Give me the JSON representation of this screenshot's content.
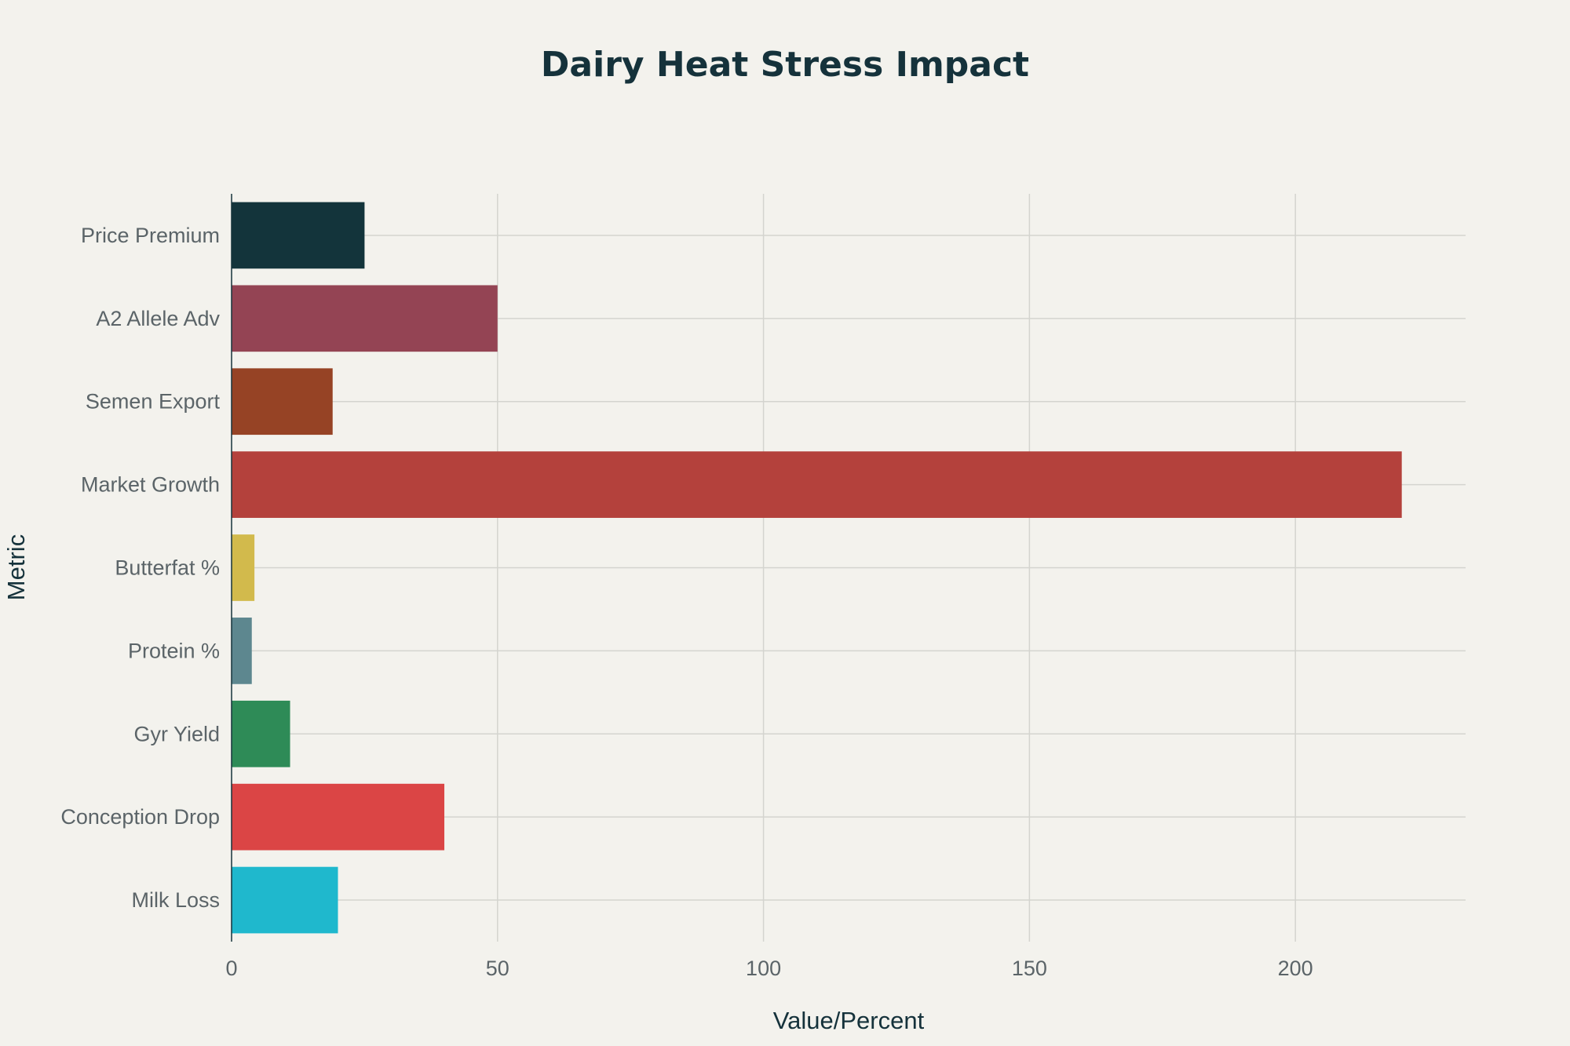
{
  "chart_data": {
    "type": "bar",
    "orientation": "horizontal",
    "title": "Dairy Heat Stress Impact",
    "xlabel": "Value/Percent",
    "ylabel": "Metric",
    "xlim": [
      0,
      232
    ],
    "xticks": [
      0,
      50,
      100,
      150,
      200
    ],
    "grid": true,
    "categories": [
      "Milk Loss",
      "Conception Drop",
      "Gyr Yield",
      "Protein %",
      "Butterfat %",
      "Market Growth",
      "Semen Export",
      "A2 Allele Adv",
      "Price Premium"
    ],
    "values": [
      20,
      40,
      11,
      3.8,
      4.3,
      220,
      19,
      50,
      25
    ],
    "colors": [
      "#1fb8cd",
      "#db4545",
      "#2e8b57",
      "#5d878f",
      "#d2ba4c",
      "#b4413c",
      "#964325",
      "#944454",
      "#13343b"
    ]
  }
}
